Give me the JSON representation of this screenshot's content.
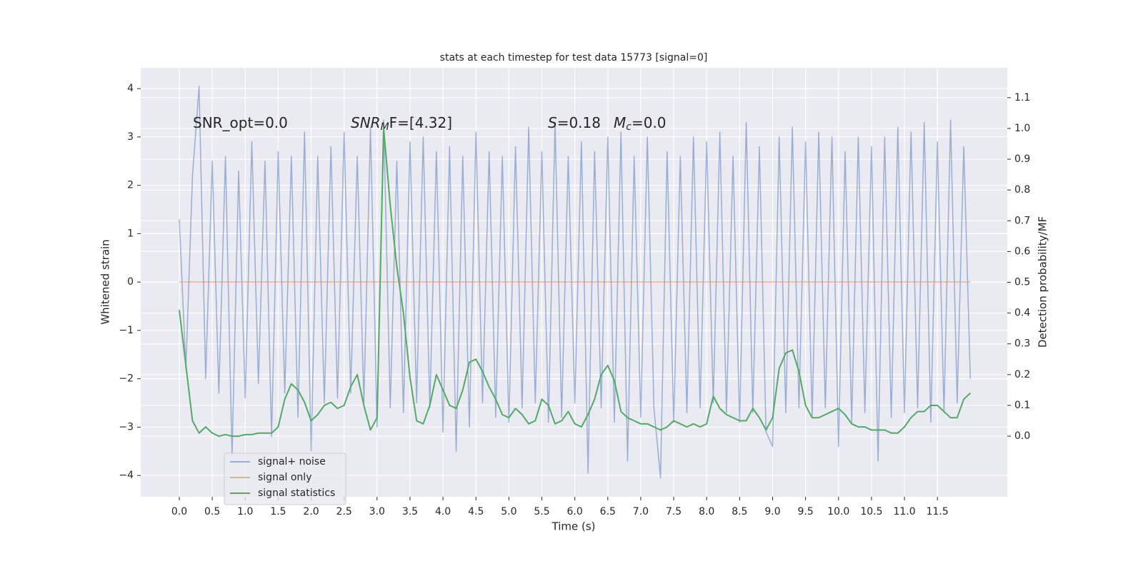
{
  "chart_data": {
    "type": "line",
    "title": "stats at each timestep for test data 15773 [signal=0]",
    "xlabel": "Time (s)",
    "ylabel": "Whitened strain",
    "y2label": "Detection probability/MF",
    "annotations": [
      [
        {
          "text": "SNR_opt=0.0"
        }
      ],
      [
        {
          "text": "SNR",
          "italic": true
        },
        {
          "text": "M",
          "italic": true,
          "sub": true
        },
        {
          "text": "F=[4.32]",
          "italic": false
        }
      ],
      [
        {
          "text": "S",
          "italic": true
        },
        {
          "text": "=0.18"
        }
      ],
      [
        {
          "text": "M",
          "italic": true
        },
        {
          "text": "c",
          "italic": true,
          "sub": true
        },
        {
          "text": "=0.0"
        }
      ]
    ],
    "grid": true,
    "legend": "lower left",
    "xlim": [
      -0.585,
      12.56
    ],
    "ylim": [
      -4.44,
      4.43
    ],
    "y2lim": [
      -0.197,
      1.197
    ],
    "xticks": [
      {
        "value": 0,
        "label": "0.0"
      },
      {
        "value": 0.5,
        "label": "0.5"
      },
      {
        "value": 1,
        "label": "1.0"
      },
      {
        "value": 1.5,
        "label": "1.5"
      },
      {
        "value": 2,
        "label": "2.0"
      },
      {
        "value": 2.5,
        "label": "2.5"
      },
      {
        "value": 3,
        "label": "3.0"
      },
      {
        "value": 3.5,
        "label": "3.5"
      },
      {
        "value": 4,
        "label": "4.0"
      },
      {
        "value": 4.5,
        "label": "4.5"
      },
      {
        "value": 5,
        "label": "5.0"
      },
      {
        "value": 5.5,
        "label": "5.5"
      },
      {
        "value": 6,
        "label": "6.0"
      },
      {
        "value": 6.5,
        "label": "6.5"
      },
      {
        "value": 7,
        "label": "7.0"
      },
      {
        "value": 7.5,
        "label": "7.5"
      },
      {
        "value": 8,
        "label": "8.0"
      },
      {
        "value": 8.5,
        "label": "8.5"
      },
      {
        "value": 9,
        "label": "9.0"
      },
      {
        "value": 9.5,
        "label": "9.5"
      },
      {
        "value": 10,
        "label": "10.0"
      },
      {
        "value": 10.5,
        "label": "10.5"
      },
      {
        "value": 11,
        "label": "11.0"
      },
      {
        "value": 11.5,
        "label": "11.5"
      }
    ],
    "yticks": [
      {
        "value": -4,
        "label": "−4"
      },
      {
        "value": -3,
        "label": "−3"
      },
      {
        "value": -2,
        "label": "−2"
      },
      {
        "value": -1,
        "label": "−1"
      },
      0,
      1,
      2,
      3,
      4
    ],
    "y2ticks": [
      {
        "value": 0,
        "label": "0.0"
      },
      {
        "value": 0.1,
        "label": "0.1"
      },
      {
        "value": 0.2,
        "label": "0.2"
      },
      {
        "value": 0.3,
        "label": "0.3"
      },
      {
        "value": 0.4,
        "label": "0.4"
      },
      {
        "value": 0.5,
        "label": "0.5"
      },
      {
        "value": 0.6,
        "label": "0.6"
      },
      {
        "value": 0.7,
        "label": "0.7"
      },
      {
        "value": 0.8,
        "label": "0.8"
      },
      {
        "value": 0.9,
        "label": "0.9"
      },
      {
        "value": 1,
        "label": "1.0"
      },
      {
        "value": 1.1,
        "label": "1.1"
      }
    ],
    "x": [
      0,
      0.1,
      0.2,
      0.3,
      0.4,
      0.5,
      0.6,
      0.7,
      0.8,
      0.9,
      1,
      1.1,
      1.2,
      1.3,
      1.4,
      1.5,
      1.6,
      1.7,
      1.8,
      1.9,
      2,
      2.1,
      2.2,
      2.3,
      2.4,
      2.5,
      2.6,
      2.7,
      2.8,
      2.9,
      3,
      3.1,
      3.2,
      3.3,
      3.4,
      3.5,
      3.6,
      3.7,
      3.8,
      3.9,
      4,
      4.1,
      4.2,
      4.3,
      4.4,
      4.5,
      4.6,
      4.7,
      4.8,
      4.9,
      5,
      5.1,
      5.2,
      5.3,
      5.4,
      5.5,
      5.6,
      5.7,
      5.8,
      5.9,
      6,
      6.1,
      6.2,
      6.3,
      6.4,
      6.5,
      6.6,
      6.7,
      6.8,
      6.9,
      7,
      7.1,
      7.2,
      7.3,
      7.4,
      7.5,
      7.6,
      7.7,
      7.8,
      7.9,
      8,
      8.1,
      8.2,
      8.3,
      8.4,
      8.5,
      8.6,
      8.7,
      8.8,
      8.9,
      9,
      9.1,
      9.2,
      9.3,
      9.4,
      9.5,
      9.6,
      9.7,
      9.8,
      9.9,
      10,
      10.1,
      10.2,
      10.3,
      10.4,
      10.5,
      10.6,
      10.7,
      10.8,
      10.9,
      11,
      11.1,
      11.2,
      11.3,
      11.4,
      11.5,
      11.6,
      11.7,
      11.8,
      11.9,
      12
    ],
    "series": [
      {
        "name": "signal+ noise",
        "color": "#4c72b0",
        "alpha": 0.5,
        "values": [
          1.3,
          -1.8,
          2.2,
          4.05,
          -2.0,
          2.5,
          -2.3,
          2.6,
          -3.6,
          2.3,
          -2.4,
          2.9,
          -2.1,
          2.5,
          -3.2,
          2.7,
          -2.3,
          2.6,
          -2.8,
          3.1,
          -3.5,
          2.6,
          -2.5,
          2.8,
          -2.4,
          3.1,
          -2.3,
          2.6,
          -2.5,
          3.2,
          -3.0,
          3.35,
          -2.6,
          2.5,
          -2.7,
          2.9,
          -2.5,
          3.0,
          -2.6,
          2.7,
          -3.1,
          2.8,
          -3.5,
          2.6,
          -3.0,
          3.1,
          -2.5,
          2.7,
          -2.8,
          2.6,
          -2.9,
          2.8,
          -2.6,
          3.2,
          -2.5,
          2.7,
          -2.9,
          3.3,
          -2.8,
          2.6,
          -2.5,
          2.9,
          -3.95,
          2.7,
          -2.6,
          3.0,
          -2.9,
          3.1,
          -3.7,
          2.6,
          -2.8,
          3.0,
          -2.6,
          -4.05,
          2.7,
          -2.9,
          2.6,
          -2.7,
          3.0,
          -2.6,
          2.9,
          -2.5,
          3.1,
          -2.7,
          2.6,
          -2.9,
          3.3,
          -2.7,
          2.8,
          -3.1,
          -3.4,
          3.0,
          -2.7,
          3.2,
          -2.6,
          2.9,
          -2.8,
          3.1,
          -2.6,
          3.0,
          -3.4,
          2.7,
          -2.9,
          3.0,
          -2.7,
          2.8,
          -3.7,
          3.0,
          -2.8,
          3.2,
          -2.7,
          3.1,
          -2.6,
          3.3,
          -2.9,
          2.9,
          -2.7,
          3.35,
          -2.5,
          2.8,
          -2.0
        ]
      },
      {
        "name": "signal only",
        "color": "#dd8452",
        "alpha": 0.6,
        "values": [
          0,
          0,
          0,
          0,
          0,
          0,
          0,
          0,
          0,
          0,
          0,
          0,
          0,
          0,
          0,
          0,
          0,
          0,
          0,
          0,
          0,
          0,
          0,
          0,
          0,
          0,
          0,
          0,
          0,
          0,
          0,
          0,
          0,
          0,
          0,
          0,
          0,
          0,
          0,
          0,
          0,
          0,
          0,
          0,
          0,
          0,
          0,
          0,
          0,
          0,
          0,
          0,
          0,
          0,
          0,
          0,
          0,
          0,
          0,
          0,
          0,
          0,
          0,
          0,
          0,
          0,
          0,
          0,
          0,
          0,
          0,
          0,
          0,
          0,
          0,
          0,
          0,
          0,
          0,
          0,
          0,
          0,
          0,
          0,
          0,
          0,
          0,
          0,
          0,
          0,
          0,
          0,
          0,
          0,
          0,
          0,
          0,
          0,
          0,
          0,
          0,
          0,
          0,
          0,
          0,
          0,
          0,
          0,
          0,
          0,
          0,
          0,
          0,
          0,
          0,
          0,
          0,
          0,
          0,
          0,
          0
        ]
      },
      {
        "name": "signal statistics",
        "color": "#55a868",
        "alpha": 1,
        "axis": "y2",
        "values": [
          0.41,
          0.23,
          0.05,
          0.01,
          0.03,
          0.01,
          0.0,
          0.005,
          0.0,
          0.0,
          0.005,
          0.005,
          0.01,
          0.01,
          0.01,
          0.03,
          0.12,
          0.17,
          0.15,
          0.11,
          0.05,
          0.07,
          0.1,
          0.11,
          0.09,
          0.1,
          0.16,
          0.2,
          0.1,
          0.02,
          0.06,
          1.0,
          0.75,
          0.55,
          0.4,
          0.19,
          0.05,
          0.04,
          0.1,
          0.2,
          0.15,
          0.1,
          0.09,
          0.15,
          0.24,
          0.25,
          0.21,
          0.16,
          0.12,
          0.07,
          0.06,
          0.09,
          0.07,
          0.04,
          0.05,
          0.12,
          0.1,
          0.04,
          0.05,
          0.08,
          0.04,
          0.03,
          0.07,
          0.12,
          0.2,
          0.23,
          0.18,
          0.08,
          0.06,
          0.05,
          0.04,
          0.04,
          0.03,
          0.02,
          0.03,
          0.05,
          0.04,
          0.03,
          0.04,
          0.03,
          0.04,
          0.13,
          0.09,
          0.07,
          0.06,
          0.05,
          0.05,
          0.09,
          0.06,
          0.02,
          0.06,
          0.22,
          0.27,
          0.28,
          0.21,
          0.1,
          0.06,
          0.06,
          0.07,
          0.08,
          0.09,
          0.07,
          0.04,
          0.03,
          0.03,
          0.02,
          0.02,
          0.02,
          0.01,
          0.01,
          0.03,
          0.06,
          0.08,
          0.08,
          0.1,
          0.1,
          0.08,
          0.06,
          0.06,
          0.12,
          0.14
        ]
      }
    ]
  }
}
